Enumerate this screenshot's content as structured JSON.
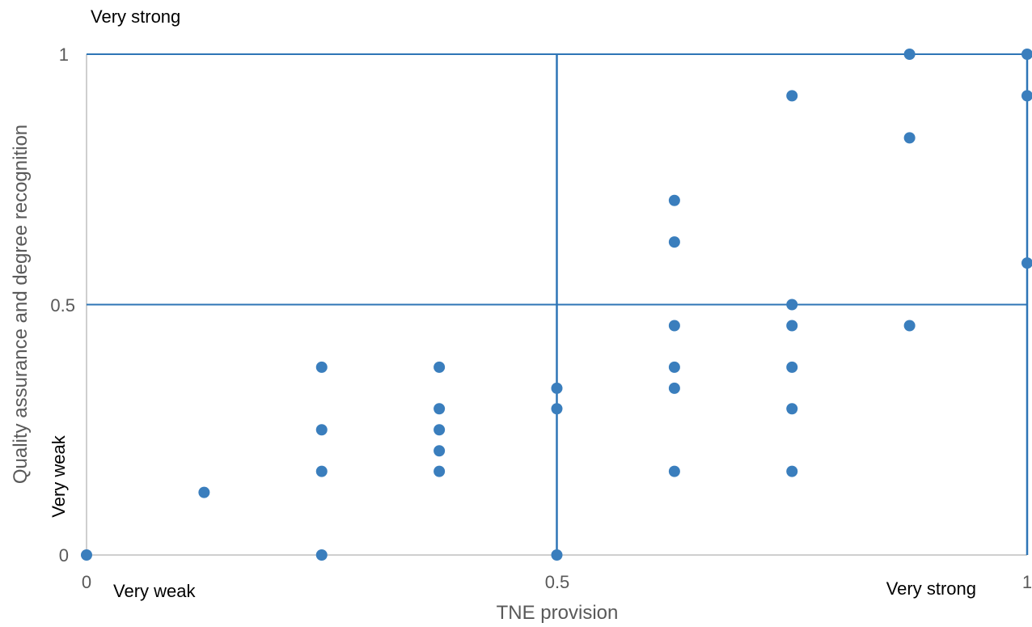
{
  "chart_data": {
    "type": "scatter",
    "xlabel": "TNE provision",
    "ylabel": "Quality assurance and degree recognition",
    "xlim": [
      0,
      1
    ],
    "ylim": [
      0,
      1
    ],
    "x_ticks": [
      "0",
      "0.5",
      "1"
    ],
    "y_ticks": [
      "0",
      "0.5",
      "1"
    ],
    "reference_lines": {
      "x": 0.5,
      "y": 0.5
    },
    "annotations": {
      "x_low": "Very weak",
      "x_high": "Very strong",
      "y_low": "Very weak",
      "y_high": "Very strong"
    },
    "grid": false,
    "legend": "none",
    "colors": {
      "marker": "#3A7EBD",
      "line": "#2E75B6",
      "axis": "#BFBFBF"
    },
    "points": [
      {
        "x": 0,
        "y": 0
      },
      {
        "x": 0.125,
        "y": 0.125
      },
      {
        "x": 0.25,
        "y": 0
      },
      {
        "x": 0.25,
        "y": 0.167
      },
      {
        "x": 0.25,
        "y": 0.25
      },
      {
        "x": 0.25,
        "y": 0.375
      },
      {
        "x": 0.375,
        "y": 0.167
      },
      {
        "x": 0.375,
        "y": 0.208
      },
      {
        "x": 0.375,
        "y": 0.25
      },
      {
        "x": 0.375,
        "y": 0.292
      },
      {
        "x": 0.375,
        "y": 0.375
      },
      {
        "x": 0.5,
        "y": 0
      },
      {
        "x": 0.5,
        "y": 0.292
      },
      {
        "x": 0.5,
        "y": 0.333
      },
      {
        "x": 0.625,
        "y": 0.167
      },
      {
        "x": 0.625,
        "y": 0.333
      },
      {
        "x": 0.625,
        "y": 0.375
      },
      {
        "x": 0.625,
        "y": 0.458
      },
      {
        "x": 0.625,
        "y": 0.625
      },
      {
        "x": 0.625,
        "y": 0.708
      },
      {
        "x": 0.75,
        "y": 0.167
      },
      {
        "x": 0.75,
        "y": 0.292
      },
      {
        "x": 0.75,
        "y": 0.375
      },
      {
        "x": 0.75,
        "y": 0.458
      },
      {
        "x": 0.75,
        "y": 0.5
      },
      {
        "x": 0.75,
        "y": 0.917
      },
      {
        "x": 0.875,
        "y": 0.458
      },
      {
        "x": 0.875,
        "y": 0.833
      },
      {
        "x": 0.875,
        "y": 1
      },
      {
        "x": 1,
        "y": 0.583
      },
      {
        "x": 1,
        "y": 0.917
      },
      {
        "x": 1,
        "y": 1
      }
    ]
  }
}
